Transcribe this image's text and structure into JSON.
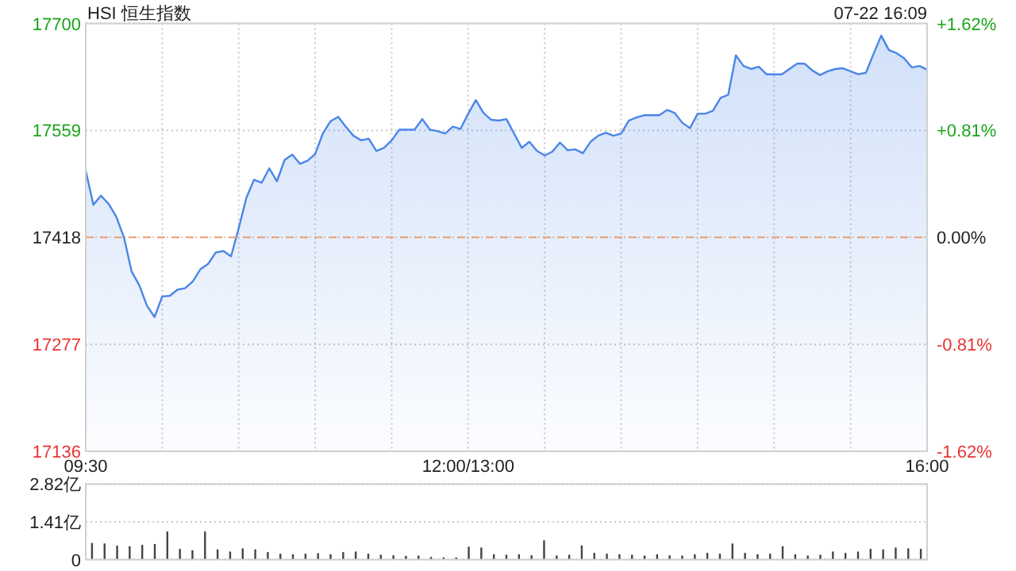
{
  "chart_data": [
    {
      "type": "area",
      "title": "HSI 恒生指数",
      "annotations": [
        "07-22 16:09"
      ],
      "categories": [
        "09:30",
        null,
        null,
        null,
        null,
        null,
        null,
        null,
        null,
        null,
        null,
        null,
        null,
        null,
        null,
        null,
        null,
        null,
        null,
        null,
        null,
        null,
        null,
        null,
        null,
        null,
        null,
        null,
        null,
        null,
        null,
        null,
        null,
        null,
        null,
        null,
        null,
        null,
        null,
        null,
        null,
        null,
        null,
        null,
        null,
        null,
        null,
        null,
        null,
        null,
        "12:00/13:00",
        null,
        null,
        null,
        null,
        null,
        null,
        null,
        null,
        null,
        null,
        null,
        null,
        null,
        null,
        null,
        null,
        null,
        null,
        null,
        null,
        null,
        null,
        null,
        null,
        null,
        null,
        null,
        null,
        null,
        null,
        null,
        null,
        null,
        null,
        null,
        null,
        null,
        null,
        null,
        null,
        null,
        null,
        null,
        null,
        null,
        null,
        null,
        null,
        null,
        null,
        null,
        null,
        null,
        null,
        null,
        null,
        null,
        null,
        null,
        "16:00"
      ],
      "series": [
        {
          "color": "#4a86e8",
          "values": [
            17506,
            17461,
            17473,
            17462,
            17445,
            17418,
            17373,
            17355,
            17328,
            17313,
            17340,
            17341,
            17349,
            17351,
            17360,
            17376,
            17383,
            17398,
            17400,
            17393,
            17430,
            17470,
            17494,
            17490,
            17509,
            17492,
            17520,
            17527,
            17515,
            17519,
            17528,
            17555,
            17571,
            17577,
            17564,
            17552,
            17546,
            17548,
            17532,
            17536,
            17546,
            17560,
            17560,
            17560,
            17574,
            17560,
            17558,
            17555,
            17564,
            17561,
            17581,
            17599,
            17582,
            17573,
            17572,
            17574,
            17555,
            17536,
            17544,
            17532,
            17526,
            17531,
            17543,
            17533,
            17534,
            17529,
            17544,
            17552,
            17556,
            17552,
            17555,
            17572,
            17576,
            17579,
            17579,
            17579,
            17586,
            17582,
            17569,
            17562,
            17581,
            17581,
            17585,
            17602,
            17606,
            17658,
            17644,
            17640,
            17643,
            17633,
            17633,
            17633,
            17640,
            17647,
            17647,
            17638,
            17632,
            17637,
            17640,
            17641,
            17637,
            17633,
            17635,
            17660,
            17684,
            17665,
            17661,
            17654,
            17642,
            17644,
            17639
          ]
        }
      ],
      "ylim": [
        17136,
        17700
      ],
      "yticks": [
        17136,
        17277,
        17418,
        17559,
        17700
      ],
      "y2lim": [
        -1.62,
        1.62
      ],
      "y2ticks": [
        {
          "value": -1.62,
          "label": "-1.62%"
        },
        {
          "value": -0.81,
          "label": "-0.81%"
        },
        {
          "value": 0,
          "label": "0.00%"
        },
        {
          "value": 0.81,
          "label": "+0.81%"
        },
        {
          "value": 1.62,
          "label": "+1.62%"
        }
      ],
      "ref_lines": [
        {
          "axis": "y",
          "value": 17418,
          "label": null,
          "color": "#f0a070",
          "line_style": "dashed"
        }
      ],
      "grid": true
    },
    {
      "type": "bar",
      "categories": [
        null,
        null,
        null,
        null,
        null,
        null,
        null,
        null,
        null,
        null,
        null,
        null,
        null,
        null,
        null,
        null,
        null,
        null,
        null,
        null,
        null,
        null,
        null,
        null,
        null,
        null,
        null,
        null,
        null,
        null,
        null,
        null,
        null,
        null,
        null,
        null,
        null,
        null,
        null,
        null,
        null,
        null,
        null,
        null,
        null,
        null,
        null,
        null,
        null,
        null,
        null,
        null,
        null,
        null,
        null,
        null,
        null,
        null,
        null,
        null,
        null,
        null,
        null,
        null,
        null,
        null,
        null
      ],
      "values": [
        0.62,
        0.6,
        0.52,
        0.5,
        0.55,
        0.58,
        1.05,
        0.4,
        0.35,
        1.05,
        0.38,
        0.3,
        0.42,
        0.38,
        0.28,
        0.22,
        0.2,
        0.22,
        0.24,
        0.2,
        0.28,
        0.3,
        0.22,
        0.18,
        0.16,
        0.14,
        0.15,
        0.1,
        0.08,
        0.08,
        0.48,
        0.45,
        0.2,
        0.18,
        0.2,
        0.16,
        0.72,
        0.15,
        0.18,
        0.53,
        0.25,
        0.22,
        0.2,
        0.18,
        0.15,
        0.2,
        0.16,
        0.15,
        0.2,
        0.25,
        0.22,
        0.6,
        0.25,
        0.2,
        0.22,
        0.5,
        0.2,
        0.15,
        0.18,
        0.3,
        0.25,
        0.3,
        0.4,
        0.38,
        0.45,
        0.42,
        0.4
      ],
      "color": "#444444",
      "ylim": [
        0,
        2.82
      ],
      "yticks": [
        0,
        {
          "value": 1.41,
          "label": "1.41亿"
        },
        {
          "value": 2.82,
          "label": "2.82亿"
        }
      ],
      "grid": "y",
      "tick_labels": "y"
    }
  ]
}
